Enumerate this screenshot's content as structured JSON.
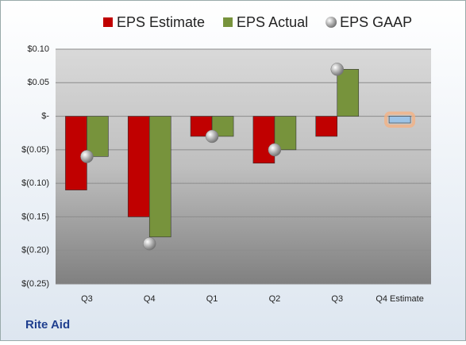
{
  "chart_data": {
    "type": "bar",
    "categories": [
      "Q3",
      "Q4",
      "Q1",
      "Q2",
      "Q3",
      "Q4 Estimate"
    ],
    "series": [
      {
        "name": "EPS Estimate",
        "color": "#c00000",
        "values": [
          -0.11,
          -0.15,
          -0.03,
          -0.07,
          -0.03,
          -0.01
        ],
        "highlight": {
          "index": 5,
          "color": "#9dc3e6",
          "glow": "#f4b183"
        }
      },
      {
        "name": "EPS Actual",
        "color": "#77933c",
        "values": [
          -0.06,
          -0.18,
          -0.03,
          -0.05,
          0.07,
          null
        ]
      },
      {
        "name": "EPS GAAP",
        "color": "#a6a6a6",
        "marker": "sphere",
        "values": [
          -0.06,
          -0.19,
          -0.03,
          -0.05,
          0.07,
          null
        ]
      }
    ],
    "ylim": [
      -0.25,
      0.1
    ],
    "yticks": [
      {
        "value": -0.25,
        "label": "$(0.25)"
      },
      {
        "value": -0.2,
        "label": "$(0.20)"
      },
      {
        "value": -0.15,
        "label": "$(0.15)"
      },
      {
        "value": -0.1,
        "label": "$(0.10)"
      },
      {
        "value": -0.05,
        "label": "$(0.05)"
      },
      {
        "value": 0,
        "label": "$-"
      },
      {
        "value": 0.05,
        "label": "$0.05"
      },
      {
        "value": 0.1,
        "label": "$0.10"
      }
    ],
    "grid": true,
    "footer": "Rite Aid"
  }
}
